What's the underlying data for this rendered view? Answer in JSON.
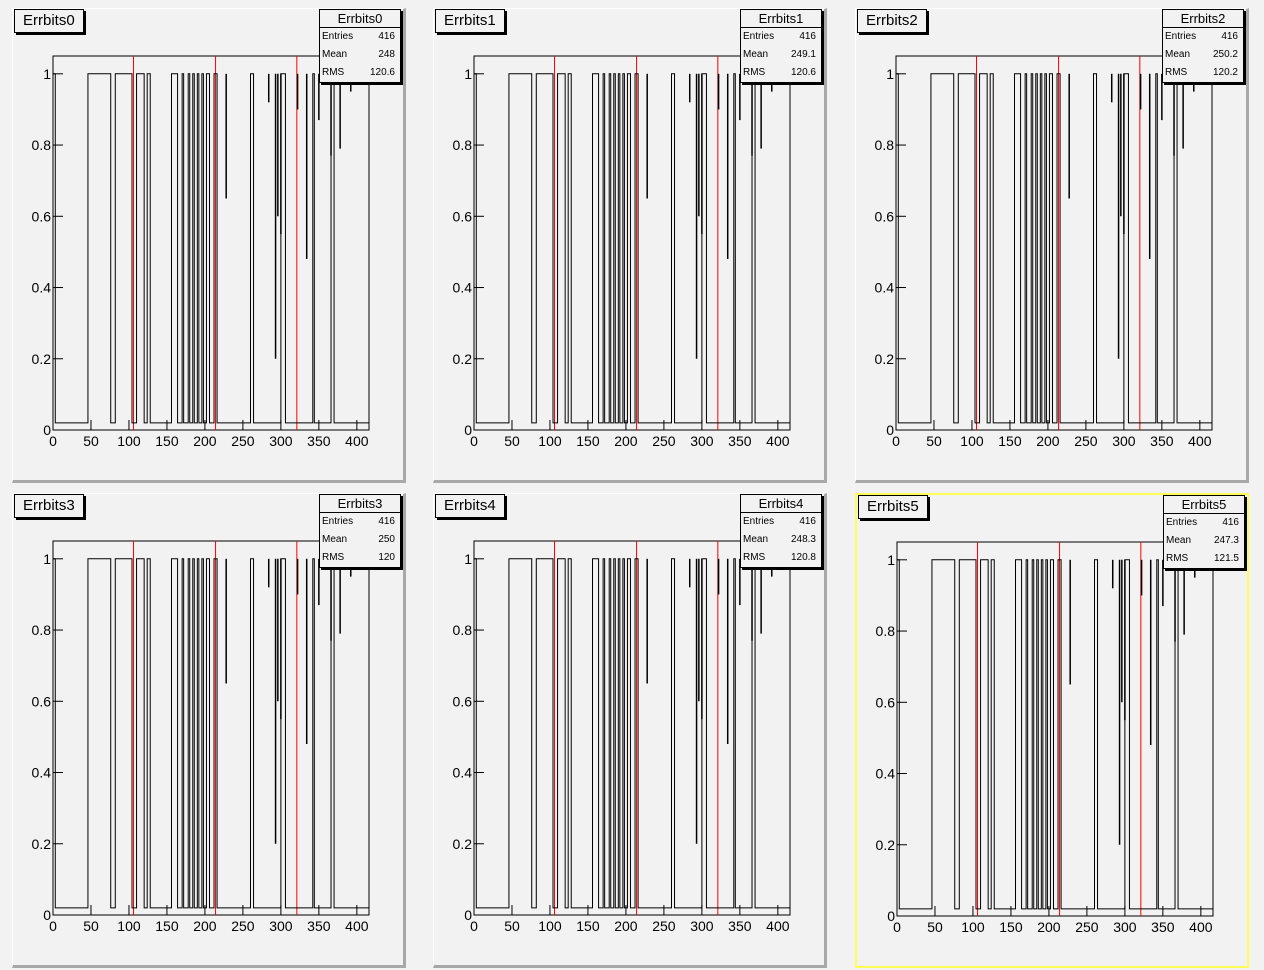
{
  "chart_data": [
    {
      "type": "line",
      "title": "Errbits0",
      "stats": [
        {
          "label": "Entries",
          "value": "416"
        },
        {
          "label": "Mean",
          "value": "248"
        },
        {
          "label": "RMS",
          "value": "120.6"
        }
      ],
      "xlim": [
        0,
        416
      ],
      "ylim": [
        0,
        1.05
      ],
      "xticks": [
        "0",
        "50",
        "100",
        "150",
        "200",
        "250",
        "300",
        "350",
        "400"
      ],
      "yticks": [
        "0",
        "0.2",
        "0.4",
        "0.6",
        "0.8",
        "1"
      ],
      "vlines": [
        106,
        214,
        321
      ],
      "segments": [
        [
          0,
          3,
          1
        ],
        [
          46,
          76,
          1
        ],
        [
          82,
          104,
          1
        ],
        [
          110,
          120,
          1
        ],
        [
          124,
          128,
          1
        ],
        [
          156,
          164,
          1
        ],
        [
          170,
          172,
          1
        ],
        [
          178,
          180,
          1
        ],
        [
          184,
          186,
          1
        ],
        [
          190,
          192,
          1
        ],
        [
          196,
          198,
          1
        ],
        [
          202,
          206,
          1
        ],
        [
          212,
          216,
          1
        ],
        [
          260,
          264,
          1
        ],
        [
          300,
          306,
          1
        ],
        [
          342,
          344,
          1
        ],
        [
          366,
          370,
          1
        ]
      ],
      "dips": [
        [
          228,
          0.65
        ],
        [
          284,
          0.92
        ],
        [
          293,
          0.2
        ],
        [
          296,
          0.6
        ],
        [
          300,
          0.55
        ],
        [
          322,
          0.9
        ],
        [
          334,
          0.48
        ],
        [
          350,
          0.87
        ],
        [
          366,
          0.77
        ],
        [
          378,
          0.79
        ],
        [
          392,
          0.95
        ]
      ],
      "selected": false
    },
    {
      "type": "line",
      "title": "Errbits1",
      "stats": [
        {
          "label": "Entries",
          "value": "416"
        },
        {
          "label": "Mean",
          "value": "249.1"
        },
        {
          "label": "RMS",
          "value": "120.6"
        }
      ],
      "xlim": [
        0,
        416
      ],
      "ylim": [
        0,
        1.05
      ],
      "xticks": [
        "0",
        "50",
        "100",
        "150",
        "200",
        "250",
        "300",
        "350",
        "400"
      ],
      "yticks": [
        "0",
        "0.2",
        "0.4",
        "0.6",
        "0.8",
        "1"
      ],
      "vlines": [
        106,
        214,
        321
      ],
      "segments": [
        [
          0,
          3,
          1
        ],
        [
          46,
          76,
          1
        ],
        [
          82,
          104,
          1
        ],
        [
          110,
          120,
          1
        ],
        [
          124,
          128,
          1
        ],
        [
          156,
          164,
          1
        ],
        [
          170,
          172,
          1
        ],
        [
          178,
          180,
          1
        ],
        [
          184,
          186,
          1
        ],
        [
          190,
          192,
          1
        ],
        [
          196,
          198,
          1
        ],
        [
          202,
          206,
          1
        ],
        [
          212,
          216,
          1
        ],
        [
          260,
          264,
          1
        ],
        [
          300,
          306,
          1
        ],
        [
          342,
          344,
          1
        ],
        [
          366,
          370,
          1
        ]
      ],
      "dips": [
        [
          228,
          0.65
        ],
        [
          284,
          0.92
        ],
        [
          293,
          0.2
        ],
        [
          296,
          0.6
        ],
        [
          300,
          0.55
        ],
        [
          322,
          0.9
        ],
        [
          334,
          0.48
        ],
        [
          350,
          0.87
        ],
        [
          366,
          0.77
        ],
        [
          378,
          0.79
        ],
        [
          392,
          0.95
        ]
      ],
      "selected": false
    },
    {
      "type": "line",
      "title": "Errbits2",
      "stats": [
        {
          "label": "Entries",
          "value": "416"
        },
        {
          "label": "Mean",
          "value": "250.2"
        },
        {
          "label": "RMS",
          "value": "120.2"
        }
      ],
      "xlim": [
        0,
        416
      ],
      "ylim": [
        0,
        1.05
      ],
      "xticks": [
        "0",
        "50",
        "100",
        "150",
        "200",
        "250",
        "300",
        "350",
        "400"
      ],
      "yticks": [
        "0",
        "0.2",
        "0.4",
        "0.6",
        "0.8",
        "1"
      ],
      "vlines": [
        106,
        214,
        321
      ],
      "segments": [
        [
          0,
          3,
          1
        ],
        [
          46,
          76,
          1
        ],
        [
          82,
          104,
          1
        ],
        [
          110,
          120,
          1
        ],
        [
          124,
          128,
          1
        ],
        [
          156,
          164,
          1
        ],
        [
          170,
          172,
          1
        ],
        [
          178,
          180,
          1
        ],
        [
          184,
          186,
          1
        ],
        [
          190,
          192,
          1
        ],
        [
          196,
          198,
          1
        ],
        [
          202,
          206,
          1
        ],
        [
          212,
          216,
          1
        ],
        [
          260,
          264,
          1
        ],
        [
          300,
          306,
          1
        ],
        [
          342,
          344,
          1
        ],
        [
          366,
          370,
          1
        ]
      ],
      "dips": [
        [
          228,
          0.65
        ],
        [
          284,
          0.92
        ],
        [
          293,
          0.2
        ],
        [
          296,
          0.6
        ],
        [
          300,
          0.55
        ],
        [
          322,
          0.9
        ],
        [
          334,
          0.48
        ],
        [
          350,
          0.87
        ],
        [
          366,
          0.77
        ],
        [
          378,
          0.79
        ],
        [
          392,
          0.95
        ]
      ],
      "selected": false
    },
    {
      "type": "line",
      "title": "Errbits3",
      "stats": [
        {
          "label": "Entries",
          "value": "416"
        },
        {
          "label": "Mean",
          "value": "250"
        },
        {
          "label": "RMS",
          "value": "120"
        }
      ],
      "xlim": [
        0,
        416
      ],
      "ylim": [
        0,
        1.05
      ],
      "xticks": [
        "0",
        "50",
        "100",
        "150",
        "200",
        "250",
        "300",
        "350",
        "400"
      ],
      "yticks": [
        "0",
        "0.2",
        "0.4",
        "0.6",
        "0.8",
        "1"
      ],
      "vlines": [
        106,
        214,
        321
      ],
      "segments": [
        [
          0,
          3,
          1
        ],
        [
          46,
          76,
          1
        ],
        [
          82,
          104,
          1
        ],
        [
          110,
          120,
          1
        ],
        [
          124,
          128,
          1
        ],
        [
          156,
          164,
          1
        ],
        [
          170,
          172,
          1
        ],
        [
          178,
          180,
          1
        ],
        [
          184,
          186,
          1
        ],
        [
          190,
          192,
          1
        ],
        [
          196,
          198,
          1
        ],
        [
          202,
          206,
          1
        ],
        [
          212,
          216,
          1
        ],
        [
          260,
          264,
          1
        ],
        [
          300,
          306,
          1
        ],
        [
          342,
          344,
          1
        ],
        [
          366,
          370,
          1
        ]
      ],
      "dips": [
        [
          228,
          0.65
        ],
        [
          284,
          0.92
        ],
        [
          293,
          0.2
        ],
        [
          296,
          0.6
        ],
        [
          300,
          0.55
        ],
        [
          322,
          0.9
        ],
        [
          334,
          0.48
        ],
        [
          350,
          0.87
        ],
        [
          366,
          0.77
        ],
        [
          378,
          0.79
        ],
        [
          392,
          0.95
        ]
      ],
      "selected": false
    },
    {
      "type": "line",
      "title": "Errbits4",
      "stats": [
        {
          "label": "Entries",
          "value": "416"
        },
        {
          "label": "Mean",
          "value": "248.3"
        },
        {
          "label": "RMS",
          "value": "120.8"
        }
      ],
      "xlim": [
        0,
        416
      ],
      "ylim": [
        0,
        1.05
      ],
      "xticks": [
        "0",
        "50",
        "100",
        "150",
        "200",
        "250",
        "300",
        "350",
        "400"
      ],
      "yticks": [
        "0",
        "0.2",
        "0.4",
        "0.6",
        "0.8",
        "1"
      ],
      "vlines": [
        106,
        214,
        321
      ],
      "segments": [
        [
          0,
          3,
          1
        ],
        [
          46,
          76,
          1
        ],
        [
          82,
          104,
          1
        ],
        [
          110,
          120,
          1
        ],
        [
          124,
          128,
          1
        ],
        [
          156,
          164,
          1
        ],
        [
          170,
          172,
          1
        ],
        [
          178,
          180,
          1
        ],
        [
          184,
          186,
          1
        ],
        [
          190,
          192,
          1
        ],
        [
          196,
          198,
          1
        ],
        [
          202,
          206,
          1
        ],
        [
          212,
          216,
          1
        ],
        [
          260,
          264,
          1
        ],
        [
          300,
          306,
          1
        ],
        [
          342,
          344,
          1
        ],
        [
          366,
          370,
          1
        ]
      ],
      "dips": [
        [
          228,
          0.65
        ],
        [
          284,
          0.92
        ],
        [
          293,
          0.2
        ],
        [
          296,
          0.6
        ],
        [
          300,
          0.55
        ],
        [
          322,
          0.9
        ],
        [
          334,
          0.48
        ],
        [
          350,
          0.87
        ],
        [
          366,
          0.77
        ],
        [
          378,
          0.79
        ],
        [
          392,
          0.95
        ]
      ],
      "selected": false
    },
    {
      "type": "line",
      "title": "Errbits5",
      "stats": [
        {
          "label": "Entries",
          "value": "416"
        },
        {
          "label": "Mean",
          "value": "247.3"
        },
        {
          "label": "RMS",
          "value": "121.5"
        }
      ],
      "xlim": [
        0,
        416
      ],
      "ylim": [
        0,
        1.05
      ],
      "xticks": [
        "0",
        "50",
        "100",
        "150",
        "200",
        "250",
        "300",
        "350",
        "400"
      ],
      "yticks": [
        "0",
        "0.2",
        "0.4",
        "0.6",
        "0.8",
        "1"
      ],
      "vlines": [
        106,
        214,
        321
      ],
      "segments": [
        [
          0,
          3,
          1
        ],
        [
          46,
          76,
          1
        ],
        [
          82,
          104,
          1
        ],
        [
          110,
          120,
          1
        ],
        [
          124,
          128,
          1
        ],
        [
          156,
          164,
          1
        ],
        [
          170,
          172,
          1
        ],
        [
          178,
          180,
          1
        ],
        [
          184,
          186,
          1
        ],
        [
          190,
          192,
          1
        ],
        [
          196,
          198,
          1
        ],
        [
          202,
          206,
          1
        ],
        [
          212,
          216,
          1
        ],
        [
          260,
          264,
          1
        ],
        [
          300,
          306,
          1
        ],
        [
          342,
          344,
          1
        ],
        [
          366,
          370,
          1
        ]
      ],
      "dips": [
        [
          228,
          0.65
        ],
        [
          284,
          0.92
        ],
        [
          293,
          0.2
        ],
        [
          296,
          0.6
        ],
        [
          300,
          0.55
        ],
        [
          322,
          0.9
        ],
        [
          334,
          0.48
        ],
        [
          350,
          0.87
        ],
        [
          366,
          0.77
        ],
        [
          378,
          0.79
        ],
        [
          392,
          0.95
        ]
      ],
      "selected": true
    }
  ],
  "colors": {
    "frame": "#000000",
    "histogram": "#000000",
    "marker_lines": "#ff0000",
    "selected_border": "#ffff55"
  }
}
